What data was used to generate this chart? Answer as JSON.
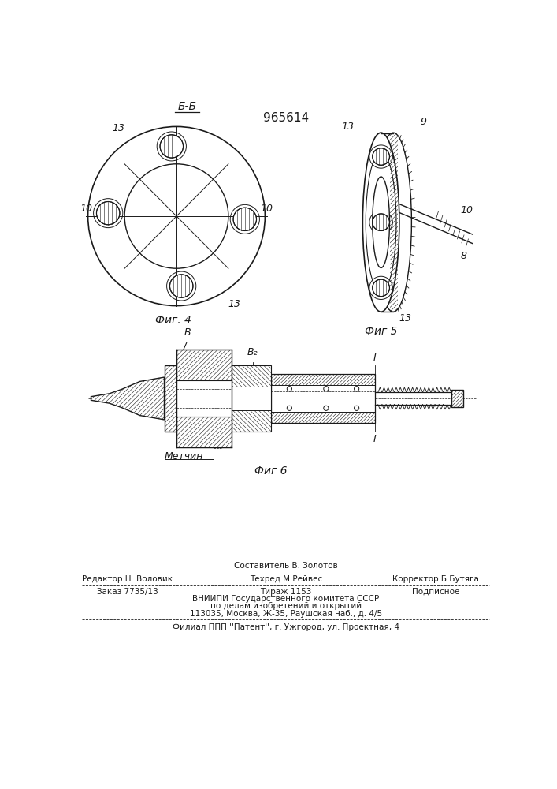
{
  "patent_number": "965614",
  "bg_color": "#ffffff",
  "line_color": "#1a1a1a",
  "fig4_label": "Фиг. 4",
  "fig5_label": "Фиг 5",
  "fig6_label": "Фиг 6",
  "section_label": "Б-Б",
  "label_10": "10",
  "label_13": "13",
  "label_8": "8",
  "label_9": "9",
  "label_B": "B",
  "label_B2": "B₂",
  "label_I": "I",
  "label_metchik": "Метчин"
}
